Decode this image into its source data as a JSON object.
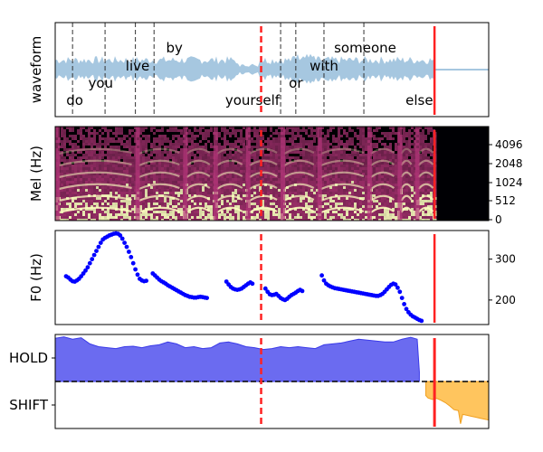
{
  "colors": {
    "waveform": "#a6c7e0",
    "f0_points": "#0000ff",
    "hold_fill": "#6b6bf0",
    "hold_line": "#3a3ae8",
    "shift_fill": "#ffc55e",
    "shift_line": "#f0a020",
    "cursor_red": "#ff2222",
    "word_boundary": "#333333",
    "spec_low": "#000004",
    "spec_mid": "#b5367a",
    "spec_high": "#fcfdbf"
  },
  "chart_data": [
    {
      "type": "line",
      "name": "waveform-panel",
      "ylabel": "waveform",
      "xlim": [
        0,
        1
      ],
      "words": [
        {
          "text": "do",
          "x": 0.045,
          "row": "low"
        },
        {
          "text": "you",
          "x": 0.105,
          "row": "mid_low"
        },
        {
          "text": "live",
          "x": 0.19,
          "row": "mid"
        },
        {
          "text": "by",
          "x": 0.275,
          "row": "high"
        },
        {
          "text": "yourself",
          "x": 0.455,
          "row": "low"
        },
        {
          "text": "or",
          "x": 0.555,
          "row": "mid_low"
        },
        {
          "text": "with",
          "x": 0.62,
          "row": "mid"
        },
        {
          "text": "someone",
          "x": 0.715,
          "row": "high"
        },
        {
          "text": "else",
          "x": 0.84,
          "row": "low"
        }
      ],
      "word_boundaries": [
        0.04,
        0.115,
        0.185,
        0.228,
        0.52,
        0.555,
        0.62,
        0.712
      ],
      "dashed_cursor": 0.475,
      "solid_cursor": 0.875,
      "audio_end": 0.88
    },
    {
      "type": "heatmap",
      "name": "mel-panel",
      "ylabel": "Mel (Hz)",
      "yticks": [
        "0",
        "512",
        "1024",
        "2048",
        "4096"
      ],
      "xlim": [
        0,
        1
      ],
      "dashed_cursor": 0.475,
      "solid_cursor": 0.875,
      "audio_end": 0.88,
      "onsets": [
        0.0,
        0.185,
        0.295,
        0.365,
        0.44,
        0.52,
        0.605,
        0.72,
        0.79,
        0.83
      ]
    },
    {
      "type": "scatter",
      "name": "f0-panel",
      "ylabel": "F0 (Hz)",
      "ylim": [
        140,
        370
      ],
      "yticks": [
        200,
        300
      ],
      "xlim": [
        0,
        1
      ],
      "dashed_cursor": 0.475,
      "solid_cursor": 0.875,
      "points": [
        [
          0.025,
          258
        ],
        [
          0.03,
          255
        ],
        [
          0.035,
          250
        ],
        [
          0.04,
          246
        ],
        [
          0.045,
          245
        ],
        [
          0.05,
          248
        ],
        [
          0.055,
          252
        ],
        [
          0.06,
          258
        ],
        [
          0.065,
          265
        ],
        [
          0.07,
          272
        ],
        [
          0.075,
          280
        ],
        [
          0.08,
          290
        ],
        [
          0.085,
          300
        ],
        [
          0.09,
          310
        ],
        [
          0.095,
          320
        ],
        [
          0.1,
          330
        ],
        [
          0.105,
          340
        ],
        [
          0.11,
          348
        ],
        [
          0.115,
          352
        ],
        [
          0.12,
          355
        ],
        [
          0.125,
          358
        ],
        [
          0.13,
          360
        ],
        [
          0.135,
          362
        ],
        [
          0.14,
          363
        ],
        [
          0.145,
          362
        ],
        [
          0.15,
          358
        ],
        [
          0.155,
          350
        ],
        [
          0.16,
          340
        ],
        [
          0.165,
          330
        ],
        [
          0.17,
          318
        ],
        [
          0.175,
          305
        ],
        [
          0.18,
          290
        ],
        [
          0.185,
          275
        ],
        [
          0.19,
          262
        ],
        [
          0.195,
          252
        ],
        [
          0.2,
          248
        ],
        [
          0.205,
          246
        ],
        [
          0.21,
          247
        ],
        [
          0.225,
          265
        ],
        [
          0.23,
          260
        ],
        [
          0.235,
          255
        ],
        [
          0.24,
          250
        ],
        [
          0.245,
          246
        ],
        [
          0.25,
          243
        ],
        [
          0.255,
          240
        ],
        [
          0.26,
          236
        ],
        [
          0.265,
          233
        ],
        [
          0.27,
          230
        ],
        [
          0.275,
          227
        ],
        [
          0.28,
          224
        ],
        [
          0.285,
          221
        ],
        [
          0.29,
          218
        ],
        [
          0.295,
          215
        ],
        [
          0.3,
          212
        ],
        [
          0.305,
          210
        ],
        [
          0.31,
          208
        ],
        [
          0.315,
          207
        ],
        [
          0.32,
          206
        ],
        [
          0.325,
          206
        ],
        [
          0.33,
          207
        ],
        [
          0.335,
          208
        ],
        [
          0.34,
          207
        ],
        [
          0.345,
          206
        ],
        [
          0.35,
          205
        ],
        [
          0.395,
          245
        ],
        [
          0.4,
          238
        ],
        [
          0.405,
          232
        ],
        [
          0.41,
          228
        ],
        [
          0.415,
          226
        ],
        [
          0.42,
          225
        ],
        [
          0.425,
          226
        ],
        [
          0.43,
          228
        ],
        [
          0.435,
          232
        ],
        [
          0.44,
          236
        ],
        [
          0.445,
          240
        ],
        [
          0.45,
          243
        ],
        [
          0.455,
          240
        ],
        [
          0.485,
          228
        ],
        [
          0.49,
          220
        ],
        [
          0.495,
          214
        ],
        [
          0.5,
          212
        ],
        [
          0.505,
          213
        ],
        [
          0.51,
          215
        ],
        [
          0.515,
          210
        ],
        [
          0.52,
          205
        ],
        [
          0.525,
          202
        ],
        [
          0.53,
          200
        ],
        [
          0.535,
          203
        ],
        [
          0.54,
          208
        ],
        [
          0.545,
          212
        ],
        [
          0.55,
          215
        ],
        [
          0.555,
          218
        ],
        [
          0.56,
          222
        ],
        [
          0.565,
          225
        ],
        [
          0.57,
          222
        ],
        [
          0.615,
          260
        ],
        [
          0.62,
          248
        ],
        [
          0.625,
          240
        ],
        [
          0.63,
          236
        ],
        [
          0.635,
          233
        ],
        [
          0.64,
          231
        ],
        [
          0.645,
          229
        ],
        [
          0.65,
          228
        ],
        [
          0.655,
          227
        ],
        [
          0.66,
          226
        ],
        [
          0.665,
          225
        ],
        [
          0.67,
          224
        ],
        [
          0.675,
          223
        ],
        [
          0.68,
          222
        ],
        [
          0.685,
          221
        ],
        [
          0.69,
          220
        ],
        [
          0.695,
          219
        ],
        [
          0.7,
          218
        ],
        [
          0.705,
          217
        ],
        [
          0.71,
          216
        ],
        [
          0.715,
          215
        ],
        [
          0.72,
          214
        ],
        [
          0.725,
          213
        ],
        [
          0.73,
          212
        ],
        [
          0.735,
          211
        ],
        [
          0.74,
          210
        ],
        [
          0.745,
          210
        ],
        [
          0.75,
          212
        ],
        [
          0.755,
          215
        ],
        [
          0.76,
          220
        ],
        [
          0.765,
          226
        ],
        [
          0.77,
          232
        ],
        [
          0.775,
          237
        ],
        [
          0.78,
          240
        ],
        [
          0.785,
          238
        ],
        [
          0.79,
          230
        ],
        [
          0.795,
          220
        ],
        [
          0.8,
          205
        ],
        [
          0.805,
          190
        ],
        [
          0.81,
          178
        ],
        [
          0.815,
          170
        ],
        [
          0.82,
          164
        ],
        [
          0.825,
          160
        ],
        [
          0.83,
          157
        ],
        [
          0.835,
          154
        ],
        [
          0.84,
          151
        ],
        [
          0.845,
          149
        ]
      ]
    },
    {
      "type": "area",
      "name": "turn-panel",
      "yticks": [
        "HOLD",
        "SHIFT"
      ],
      "xlim": [
        0,
        1
      ],
      "ylim": [
        -1,
        1
      ],
      "threshold": 0,
      "dashed_cursor": 0.475,
      "solid_cursor": 0.875,
      "series": [
        {
          "x": [
            0,
            0.02,
            0.04,
            0.06,
            0.08,
            0.1,
            0.12,
            0.14,
            0.16,
            0.18,
            0.2,
            0.22,
            0.24,
            0.26,
            0.28,
            0.3,
            0.32,
            0.34,
            0.36,
            0.38,
            0.4,
            0.42,
            0.44,
            0.46,
            0.48,
            0.5,
            0.52,
            0.54,
            0.56,
            0.58,
            0.6,
            0.62,
            0.64,
            0.66,
            0.68,
            0.7,
            0.72,
            0.74,
            0.76,
            0.78,
            0.8,
            0.82,
            0.835,
            0.84
          ],
          "y": [
            0.92,
            0.95,
            0.9,
            0.93,
            0.8,
            0.74,
            0.72,
            0.7,
            0.74,
            0.75,
            0.72,
            0.76,
            0.78,
            0.84,
            0.8,
            0.72,
            0.74,
            0.7,
            0.72,
            0.82,
            0.84,
            0.8,
            0.74,
            0.72,
            0.68,
            0.7,
            0.74,
            0.72,
            0.74,
            0.72,
            0.7,
            0.78,
            0.8,
            0.82,
            0.86,
            0.9,
            0.88,
            0.86,
            0.84,
            0.84,
            0.9,
            0.94,
            0.9,
            0.2
          ]
        },
        {
          "x": [
            0.855,
            0.86,
            0.87,
            0.88,
            0.89,
            0.9,
            0.91,
            0.92,
            0.93,
            0.935,
            0.94,
            0.95,
            0.96,
            0.97,
            0.98,
            0.99,
            1.0
          ],
          "y": [
            -0.3,
            -0.35,
            -0.38,
            -0.36,
            -0.4,
            -0.45,
            -0.52,
            -0.6,
            -0.62,
            -0.9,
            -0.7,
            -0.72,
            -0.74,
            -0.76,
            -0.78,
            -0.8,
            -0.82
          ]
        }
      ]
    }
  ]
}
